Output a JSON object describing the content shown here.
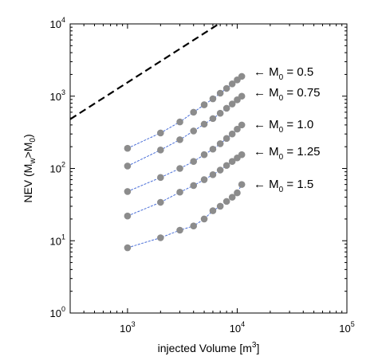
{
  "chart_data": {
    "type": "scatter",
    "xscale": "log",
    "yscale": "log",
    "xlim": [
      300,
      100000
    ],
    "ylim": [
      1,
      10000
    ],
    "grid": false,
    "xlabel": {
      "text": "injected Volume [m",
      "sup": "3",
      "tail": "]"
    },
    "ylabel": {
      "prefix": "NEV (M",
      "sub1": "w",
      "mid": ">M",
      "sub2": "0",
      "tail": ")"
    },
    "x_ticks": [
      {
        "value": 1000,
        "base": "10",
        "exp": "3"
      },
      {
        "value": 10000,
        "base": "10",
        "exp": "4"
      },
      {
        "value": 100000,
        "base": "10",
        "exp": "5"
      }
    ],
    "y_ticks": [
      {
        "value": 1,
        "base": "10",
        "exp": "0"
      },
      {
        "value": 10,
        "base": "10",
        "exp": "1"
      },
      {
        "value": 100,
        "base": "10",
        "exp": "2"
      },
      {
        "value": 1000,
        "base": "10",
        "exp": "3"
      },
      {
        "value": 10000,
        "base": "10",
        "exp": "4"
      }
    ],
    "x": [
      1000,
      2000,
      3000,
      4000,
      5000,
      6000,
      7000,
      8000,
      9000,
      10000,
      11000
    ],
    "series": [
      {
        "annotation": {
          "arrow": "←",
          "prefix": "M",
          "sub": "0",
          "value": " = 0.5"
        },
        "values": [
          190,
          310,
          440,
          600,
          760,
          920,
          1100,
          1280,
          1480,
          1680,
          1880
        ]
      },
      {
        "annotation": {
          "arrow": "←",
          "prefix": "M",
          "sub": "0",
          "value": " = 0.75"
        },
        "values": [
          108,
          180,
          250,
          330,
          410,
          490,
          580,
          680,
          780,
          890,
          1000
        ]
      },
      {
        "annotation": {
          "arrow": "←",
          "prefix": "M",
          "sub": "0",
          "value": " = 1.0"
        },
        "values": [
          48,
          75,
          100,
          125,
          155,
          185,
          220,
          260,
          300,
          350,
          400
        ]
      },
      {
        "annotation": {
          "arrow": "←",
          "prefix": "M",
          "sub": "0",
          "value": " = 1.25"
        },
        "values": [
          22,
          34,
          47,
          58,
          70,
          82,
          95,
          110,
          125,
          140,
          155
        ]
      },
      {
        "annotation": {
          "arrow": "←",
          "prefix": "M",
          "sub": "0",
          "value": " = 1.5"
        },
        "values": [
          8,
          11,
          14,
          16,
          20,
          26,
          30,
          35,
          40,
          46,
          60
        ]
      }
    ],
    "reference_line": {
      "style": "dashed",
      "color": "#000000",
      "points": [
        [
          300,
          480
        ],
        [
          6800,
          10000
        ]
      ]
    },
    "marker_color": "#8c8c8c",
    "line_color": "#4a6fd8",
    "annotations": []
  }
}
